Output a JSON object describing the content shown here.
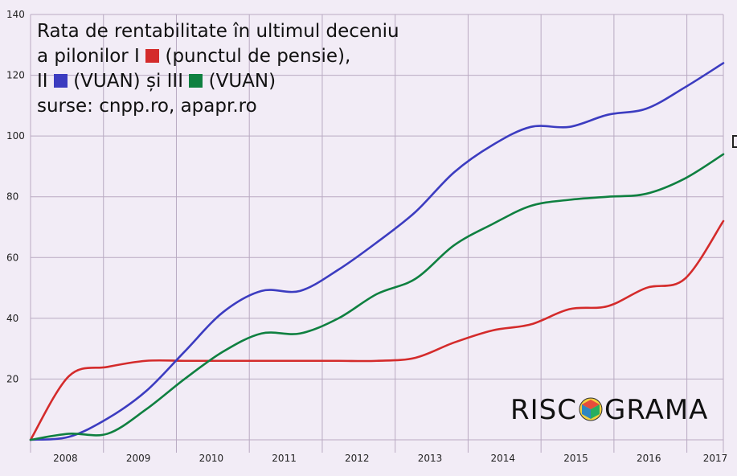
{
  "title_lines": {
    "line1": "Rata de rentabilitate în ultimul deceniu",
    "line2_prefix": "a pilonilor I",
    "line2_suffix": "(punctul de pensie),",
    "line3_prefix": "II",
    "line3_middle": "(VUAN) și III",
    "line3_suffix": "(VUAN)",
    "line4": "surse: cnpp.ro, apapr.ro"
  },
  "logo": {
    "left": "RISC",
    "right": "GRAMA"
  },
  "colors": {
    "pilon1": "#d42b2b",
    "pilon2": "#3c3cc0",
    "pilon3": "#0f8040",
    "grid": "#b9aac2",
    "background": "#f2ecf6"
  },
  "chart_data": {
    "type": "line",
    "x": [
      2008,
      2008.5,
      2009,
      2009.5,
      2010,
      2010.5,
      2011,
      2011.5,
      2012,
      2012.5,
      2013,
      2013.5,
      2014,
      2014.5,
      2015,
      2015.5,
      2016,
      2016.5,
      2017
    ],
    "x_tick_labels": [
      "2008",
      "2009",
      "2010",
      "2011",
      "2012",
      "2013",
      "2014",
      "2015",
      "2016",
      "2017"
    ],
    "y_tick_labels": [
      "20",
      "40",
      "60",
      "80",
      "100",
      "120",
      "140"
    ],
    "ylim": [
      0,
      140
    ],
    "grid": true,
    "series": [
      {
        "id": "pilon1",
        "values": [
          0,
          21,
          24,
          26,
          26,
          26,
          26,
          26,
          26,
          26,
          27,
          32,
          36,
          38,
          43,
          44,
          50,
          53,
          72
        ]
      },
      {
        "id": "pilon2",
        "values": [
          0,
          1,
          7,
          16,
          29,
          42,
          49,
          49,
          56,
          65,
          75,
          88,
          97,
          103,
          103,
          107,
          109,
          116,
          124
        ]
      },
      {
        "id": "pilon3",
        "values": [
          0,
          2,
          2,
          10,
          20,
          29,
          35,
          35,
          40,
          48,
          53,
          64,
          71,
          77,
          79,
          80,
          81,
          86,
          94
        ]
      }
    ]
  }
}
